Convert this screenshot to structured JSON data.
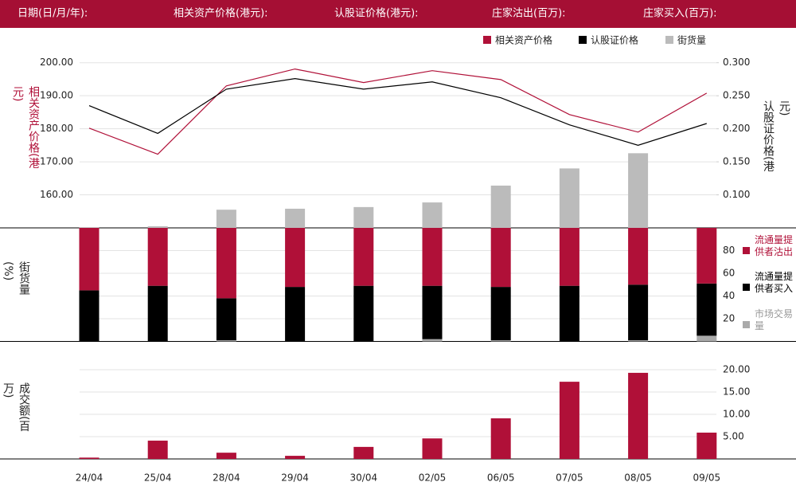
{
  "header": [
    "日期(日/月/年):",
    "相关资产价格(港元):",
    "认股证价格(港元):",
    "庄家沽出(百万):",
    "庄家买入(百万):"
  ],
  "chart_data": [
    {
      "type": "line",
      "ylabel": "相关资产价格(港元)",
      "y2label": "认股证价格(港元)",
      "ylim": [
        150,
        205
      ],
      "yticks": [
        {
          "value": 160,
          "label": "160.00"
        },
        {
          "value": 170,
          "label": "170.00"
        },
        {
          "value": 180,
          "label": "180.00"
        },
        {
          "value": 190,
          "label": "190.00"
        },
        {
          "value": 200,
          "label": "200.00"
        }
      ],
      "y2lim": [
        0.05,
        0.325
      ],
      "y2ticks": [
        {
          "value": 0.1,
          "label": "0.100"
        },
        {
          "value": 0.15,
          "label": "0.150"
        },
        {
          "value": 0.2,
          "label": "0.200"
        },
        {
          "value": 0.25,
          "label": "0.250"
        },
        {
          "value": 0.3,
          "label": "0.300"
        }
      ],
      "grid": true,
      "series": [
        {
          "name": "相关资产价格",
          "type": "line",
          "color": "#b01038",
          "values": [
            180.2,
            172.3,
            193.0,
            198.1,
            194.0,
            197.6,
            194.9,
            184.3,
            179.0,
            190.8
          ]
        },
        {
          "name": "认股证价格",
          "type": "line",
          "axis": "y2",
          "color": "#000000",
          "values": [
            0.235,
            0.193,
            0.26,
            0.276,
            0.26,
            0.271,
            0.247,
            0.206,
            0.175,
            0.208
          ]
        },
        {
          "name": "街货量",
          "type": "bar",
          "color": "#bbbbbb",
          "values": [
            150.2,
            150.5,
            155.5,
            155.8,
            156.3,
            157.7,
            162.8,
            168.0,
            172.6,
            150
          ]
        }
      ]
    },
    {
      "type": "bar",
      "stacked": true,
      "ylabel": "街货量(%)",
      "ylim": [
        0,
        100
      ],
      "yticks": [
        20,
        40,
        60,
        80
      ],
      "grid": true,
      "series": [
        {
          "name": "市场交易量",
          "color": "#aaaaaa",
          "values": [
            0,
            0,
            1,
            0,
            0,
            2,
            1,
            0,
            1,
            5
          ]
        },
        {
          "name": "流通量提供者买入",
          "color": "#000000",
          "values": [
            45,
            49,
            37,
            48,
            49,
            47,
            47,
            49,
            49,
            46
          ]
        },
        {
          "name": "流通量提供者沽出",
          "color": "#b01038",
          "values": [
            55,
            51,
            62,
            52,
            51,
            51,
            52,
            51,
            50,
            49
          ]
        }
      ]
    },
    {
      "type": "bar",
      "ylabel": "成交额(百万)",
      "color": "#b01038",
      "ylim": [
        0,
        22
      ],
      "yticks": [
        {
          "value": 5,
          "label": "5.00"
        },
        {
          "value": 10,
          "label": "10.00"
        },
        {
          "value": 15,
          "label": "15.00"
        },
        {
          "value": 20,
          "label": "20.00"
        }
      ],
      "grid": true,
      "categories": [
        "24/04",
        "25/04",
        "28/04",
        "29/04",
        "30/04",
        "02/05",
        "06/05",
        "07/05",
        "08/05",
        "09/05"
      ],
      "values": [
        0.3,
        4.1,
        1.4,
        0.7,
        2.7,
        4.6,
        9.1,
        17.3,
        19.3,
        5.9
      ]
    }
  ]
}
